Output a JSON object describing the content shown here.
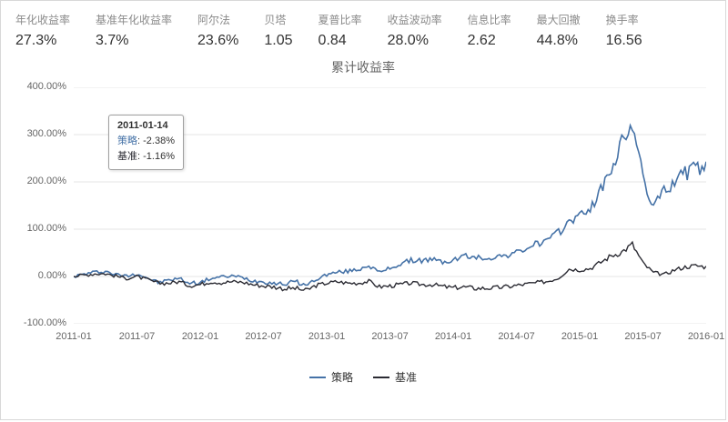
{
  "stats": [
    {
      "label": "年化收益率",
      "value": "27.3%"
    },
    {
      "label": "基准年化收益率",
      "value": "3.7%"
    },
    {
      "label": "阿尔法",
      "value": "23.6%"
    },
    {
      "label": "贝塔",
      "value": "1.05"
    },
    {
      "label": "夏普比率",
      "value": "0.84"
    },
    {
      "label": "收益波动率",
      "value": "28.0%"
    },
    {
      "label": "信息比率",
      "value": "2.62"
    },
    {
      "label": "最大回撤",
      "value": "44.8%"
    },
    {
      "label": "换手率",
      "value": "16.56"
    }
  ],
  "tooltip": {
    "date": "2011-01-14",
    "rows": [
      {
        "label": "策略",
        "value": "-2.38%"
      },
      {
        "label": "基准",
        "value": "-1.16%"
      }
    ]
  },
  "chart_data": {
    "type": "line",
    "title": "累计收益率",
    "x_unit": "month",
    "x_range": [
      "2011-01",
      "2016-01"
    ],
    "x_tick_labels": [
      "2011-01",
      "2011-07",
      "2012-01",
      "2012-07",
      "2013-01",
      "2013-07",
      "2014-01",
      "2014-07",
      "2015-01",
      "2015-07",
      "2016-01"
    ],
    "y_tick_labels": [
      "400.00%",
      "300.00%",
      "200.00%",
      "100.00%",
      "0.00%",
      "-100.00%"
    ],
    "ylim": [
      -100,
      400
    ],
    "grid": true,
    "legend_position": "bottom",
    "series": [
      {
        "name": "策略",
        "color": "#4572a7",
        "values": [
          0,
          5,
          9,
          11,
          4,
          1,
          6,
          -3,
          -13,
          -8,
          -4,
          -14,
          -13,
          -4,
          -1,
          1,
          -2,
          -9,
          -11,
          -14,
          -16,
          -10,
          -19,
          -6,
          4,
          9,
          11,
          15,
          24,
          8,
          18,
          26,
          34,
          34,
          36,
          30,
          34,
          44,
          40,
          39,
          41,
          45,
          50,
          60,
          70,
          76,
          92,
          118,
          128,
          145,
          180,
          230,
          280,
          328,
          205,
          150,
          178,
          205,
          218,
          228,
          232
        ]
      },
      {
        "name": "基准",
        "color": "#2b2b33",
        "values": [
          0,
          3,
          6,
          6,
          1,
          -4,
          0,
          -7,
          -14,
          -14,
          -11,
          -19,
          -17,
          -11,
          -13,
          -11,
          -12,
          -17,
          -20,
          -22,
          -26,
          -25,
          -30,
          -19,
          -14,
          -11,
          -14,
          -14,
          -10,
          -22,
          -20,
          -17,
          -14,
          -17,
          -17,
          -21,
          -24,
          -22,
          -25,
          -25,
          -24,
          -22,
          -19,
          -16,
          -13,
          -10,
          -3,
          16,
          14,
          17,
          30,
          44,
          52,
          68,
          28,
          8,
          4,
          14,
          20,
          23,
          20
        ]
      }
    ]
  }
}
